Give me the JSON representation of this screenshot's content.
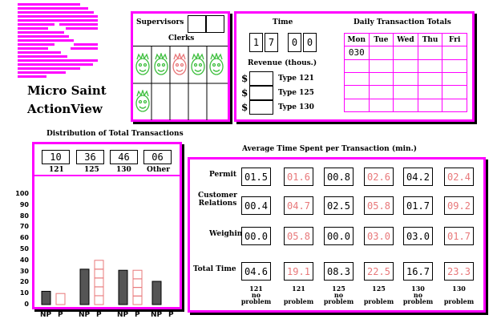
{
  "logo": {
    "line1": "Micro Saint",
    "line2": "ActionView"
  },
  "staff": {
    "supervisors_label": "Supervisors",
    "clerks_label": "Clerks"
  },
  "time": {
    "label": "Time",
    "d1": "1",
    "d2": "7",
    "d3": "0",
    "d4": "0"
  },
  "revenue": {
    "label": "Revenue (thous.)",
    "rows": [
      {
        "currency": "$",
        "type": "Type 121"
      },
      {
        "currency": "$",
        "type": "Type 125"
      },
      {
        "currency": "$",
        "type": "Type 130"
      }
    ]
  },
  "daily": {
    "title": "Daily Transaction Totals",
    "days": [
      "Mon",
      "Tue",
      "Wed",
      "Thu",
      "Fri"
    ],
    "mon_first": "030"
  },
  "distribution": {
    "title": "Distribution of Total Transactions",
    "totals": [
      {
        "value": "10",
        "label": "121"
      },
      {
        "value": "36",
        "label": "125"
      },
      {
        "value": "46",
        "label": "130"
      },
      {
        "value": "06",
        "label": "Other"
      }
    ],
    "y_ticks": [
      "100",
      "90",
      "80",
      "70",
      "60",
      "50",
      "40",
      "30",
      "20",
      "10",
      "0"
    ],
    "x_labels": [
      "NP",
      "P",
      "NP",
      "P",
      "NP",
      "P",
      "NP",
      "P"
    ]
  },
  "chart_data": {
    "type": "bar",
    "categories": [
      "NP",
      "P",
      "NP",
      "P",
      "NP",
      "P",
      "NP",
      "P"
    ],
    "values": [
      12,
      10,
      32,
      40,
      31,
      31,
      21,
      0
    ],
    "ylim": [
      0,
      100
    ]
  },
  "avg_time": {
    "title": "Average Time Spent per Transaction (min.)",
    "row_labels": [
      "Permit",
      "Customer\nRelations",
      "Weighing",
      "Total Time"
    ],
    "rows": [
      [
        "01.5",
        "01.6",
        "00.8",
        "02.6",
        "04.2",
        "02.4"
      ],
      [
        "00.4",
        "04.7",
        "02.5",
        "05.8",
        "01.7",
        "09.2"
      ],
      [
        "00.0",
        "05.8",
        "00.0",
        "03.0",
        "03.0",
        "01.7"
      ],
      [
        "04.6",
        "19.1",
        "08.3",
        "22.5",
        "16.7",
        "23.3"
      ]
    ],
    "col_headers": [
      {
        "num": "121",
        "sub": "no",
        "word": "problem"
      },
      {
        "num": "121",
        "sub": "",
        "word": "problem"
      },
      {
        "num": "125",
        "sub": "no",
        "word": "problem"
      },
      {
        "num": "125",
        "sub": "",
        "word": "problem"
      },
      {
        "num": "130",
        "sub": "no",
        "word": "problem"
      },
      {
        "num": "130",
        "sub": "",
        "word": "problem"
      }
    ],
    "colors": {
      "no_problem": "#000000",
      "problem": "#e8787a"
    }
  },
  "colors": {
    "frame": "#ff00ff",
    "face_green": "#3fbf3f",
    "face_red": "#e8787a",
    "bar_np": "#555555",
    "bar_p": "#e8787a"
  }
}
